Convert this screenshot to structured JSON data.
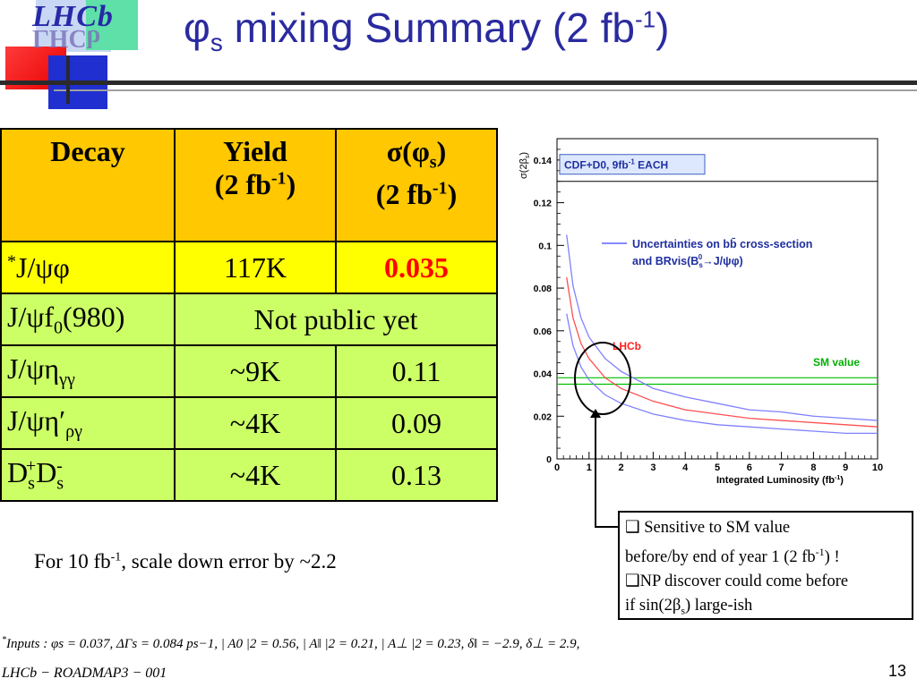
{
  "header": {
    "logo_text": "LHCb",
    "title_symbol": "φ",
    "title_symbol_sub": "s",
    "title_main": " mixing Summary (2 fb",
    "title_sup": "-1",
    "title_end": ")"
  },
  "table": {
    "header": {
      "decay": "Decay",
      "yield_line1": "Yield",
      "yield_line2_a": "(2 fb",
      "yield_line2_sup": "-1",
      "yield_line2_b": ")",
      "sigma_line1_a": "σ(φ",
      "sigma_line1_sub": "s",
      "sigma_line1_b": ")",
      "sigma_line2_a": "(2 fb",
      "sigma_line2_sup": "-1",
      "sigma_line2_b": ")"
    },
    "rows": [
      {
        "decay_sup": "*",
        "decay": "J/ψφ",
        "yield": "117K",
        "sigma": "0.035"
      },
      {
        "decay": "J/ψf",
        "decay_sub": "0",
        "decay_after": "(980)",
        "merged": "Not public yet"
      },
      {
        "decay": "J/ψη",
        "decay_sub": "γγ",
        "yield": "~9K",
        "sigma": "0.11"
      },
      {
        "decay": "J/ψη′",
        "decay_sub": "ργ",
        "yield": "~4K",
        "sigma": "0.09"
      },
      {
        "decay_a": "D",
        "decay_sub1": "s",
        "decay_sup1": "+",
        "decay_b": "D",
        "decay_sub2": "s",
        "decay_sup2": "-",
        "yield": "~4K",
        "sigma": "0.13"
      }
    ]
  },
  "note_10fb": {
    "a": "For 10 fb",
    "sup": "-1",
    "b": ", scale down error by ~2.2"
  },
  "chart_data": {
    "type": "line",
    "ylabel": "σ(2β",
    "ylabel_sub": "s",
    "ylabel_end": ")",
    "xlabel": "Integrated Luminosity (fb",
    "xlabel_sup": "-1",
    "xlabel_end": ")",
    "xlim": [
      0,
      10
    ],
    "ylim": [
      0,
      0.15
    ],
    "xticks": [
      "0",
      "1",
      "2",
      "3",
      "4",
      "5",
      "6",
      "7",
      "8",
      "9",
      "10"
    ],
    "yticks": [
      "0",
      "0.02",
      "0.04",
      "0.06",
      "0.08",
      "0.1",
      "0.12",
      "0.14"
    ],
    "cdf_label": "CDF+D0, 9fb",
    "cdf_label_sup": "-1",
    "cdf_label_end": " EACH",
    "cdf_value": 0.13,
    "legend_line1": "Uncertainties on bb̄  cross-section",
    "legend_line2": "and BRvis(B",
    "legend_line2_sub": "s",
    "legend_line2_sup": "0",
    "legend_line2_end": "→J/ψφ)",
    "lhcb_label": "LHCb",
    "sm_label": "SM value",
    "sm_band": [
      0.035,
      0.038
    ],
    "series": [
      {
        "color": "#8080ff",
        "x": [
          0.3,
          0.5,
          0.75,
          1,
          1.5,
          2,
          3,
          4,
          5,
          6,
          7,
          8,
          9,
          10
        ],
        "y": [
          0.105,
          0.081,
          0.066,
          0.057,
          0.047,
          0.041,
          0.033,
          0.029,
          0.026,
          0.023,
          0.022,
          0.02,
          0.019,
          0.018
        ]
      },
      {
        "color": "#ff5050",
        "name": "LHCb",
        "x": [
          0.3,
          0.5,
          0.75,
          1,
          1.5,
          2,
          3,
          4,
          5,
          6,
          7,
          8,
          9,
          10
        ],
        "y": [
          0.085,
          0.066,
          0.054,
          0.047,
          0.038,
          0.033,
          0.027,
          0.023,
          0.021,
          0.019,
          0.018,
          0.017,
          0.016,
          0.015
        ]
      },
      {
        "color": "#8080ff",
        "x": [
          0.3,
          0.5,
          0.75,
          1,
          1.5,
          2,
          3,
          4,
          5,
          6,
          7,
          8,
          9,
          10
        ],
        "y": [
          0.068,
          0.053,
          0.043,
          0.037,
          0.03,
          0.026,
          0.021,
          0.018,
          0.016,
          0.015,
          0.014,
          0.013,
          0.012,
          0.012
        ]
      }
    ]
  },
  "sidebox": {
    "line1_a": "❑ Sensitive to SM value",
    "line2_a": "before/by end of year 1 (2 fb",
    "line2_sup": "-1",
    "line2_b": ") !",
    "line3": "❑NP discover could come before",
    "line4_a": "if sin(2β",
    "line4_sub": "s",
    "line4_b": ") large-ish"
  },
  "footer": {
    "inputs_star": "*",
    "inputs": "Inputs : φs = 0.037, ΔΓs = 0.084 ps−1, | A0 |2 = 0.56, | A‖ |2 = 0.21, | A⊥ |2 = 0.23, δ‖ = −2.9, δ⊥ = 2.9,",
    "roadmap": "LHCb − ROADMAP3 − 001",
    "page_number": "13"
  }
}
